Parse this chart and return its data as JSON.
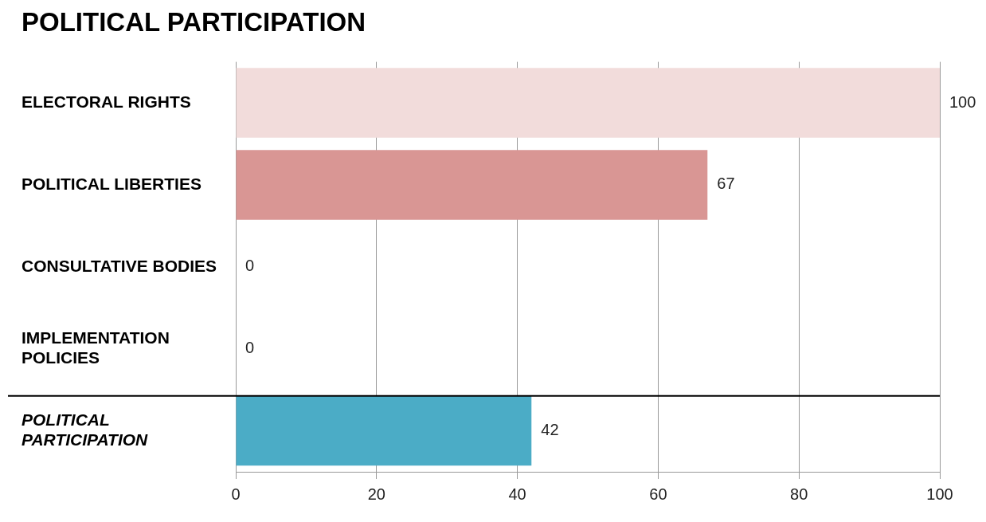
{
  "chart_data": {
    "type": "bar",
    "title": "POLITICAL PARTICIPATION",
    "orientation": "horizontal",
    "categories": [
      "ELECTORAL RIGHTS",
      "POLITICAL LIBERTIES",
      "CONSULTATIVE BODIES",
      "IMPLEMENTATION POLICIES",
      "POLITICAL PARTICIPATION"
    ],
    "values": [
      100,
      67,
      0,
      0,
      42
    ],
    "colors": [
      "#f2dcdb",
      "#d99694",
      "#d99694",
      "#d99694",
      "#4bacc6"
    ],
    "xlim": [
      0,
      100
    ],
    "xticks": [
      0,
      20,
      40,
      60,
      80,
      100
    ],
    "grid": "x",
    "data_labels": true,
    "ref_lines": [
      {
        "axis": "y",
        "value": "POLITICAL PARTICIPATION",
        "color": "#000000"
      }
    ]
  }
}
